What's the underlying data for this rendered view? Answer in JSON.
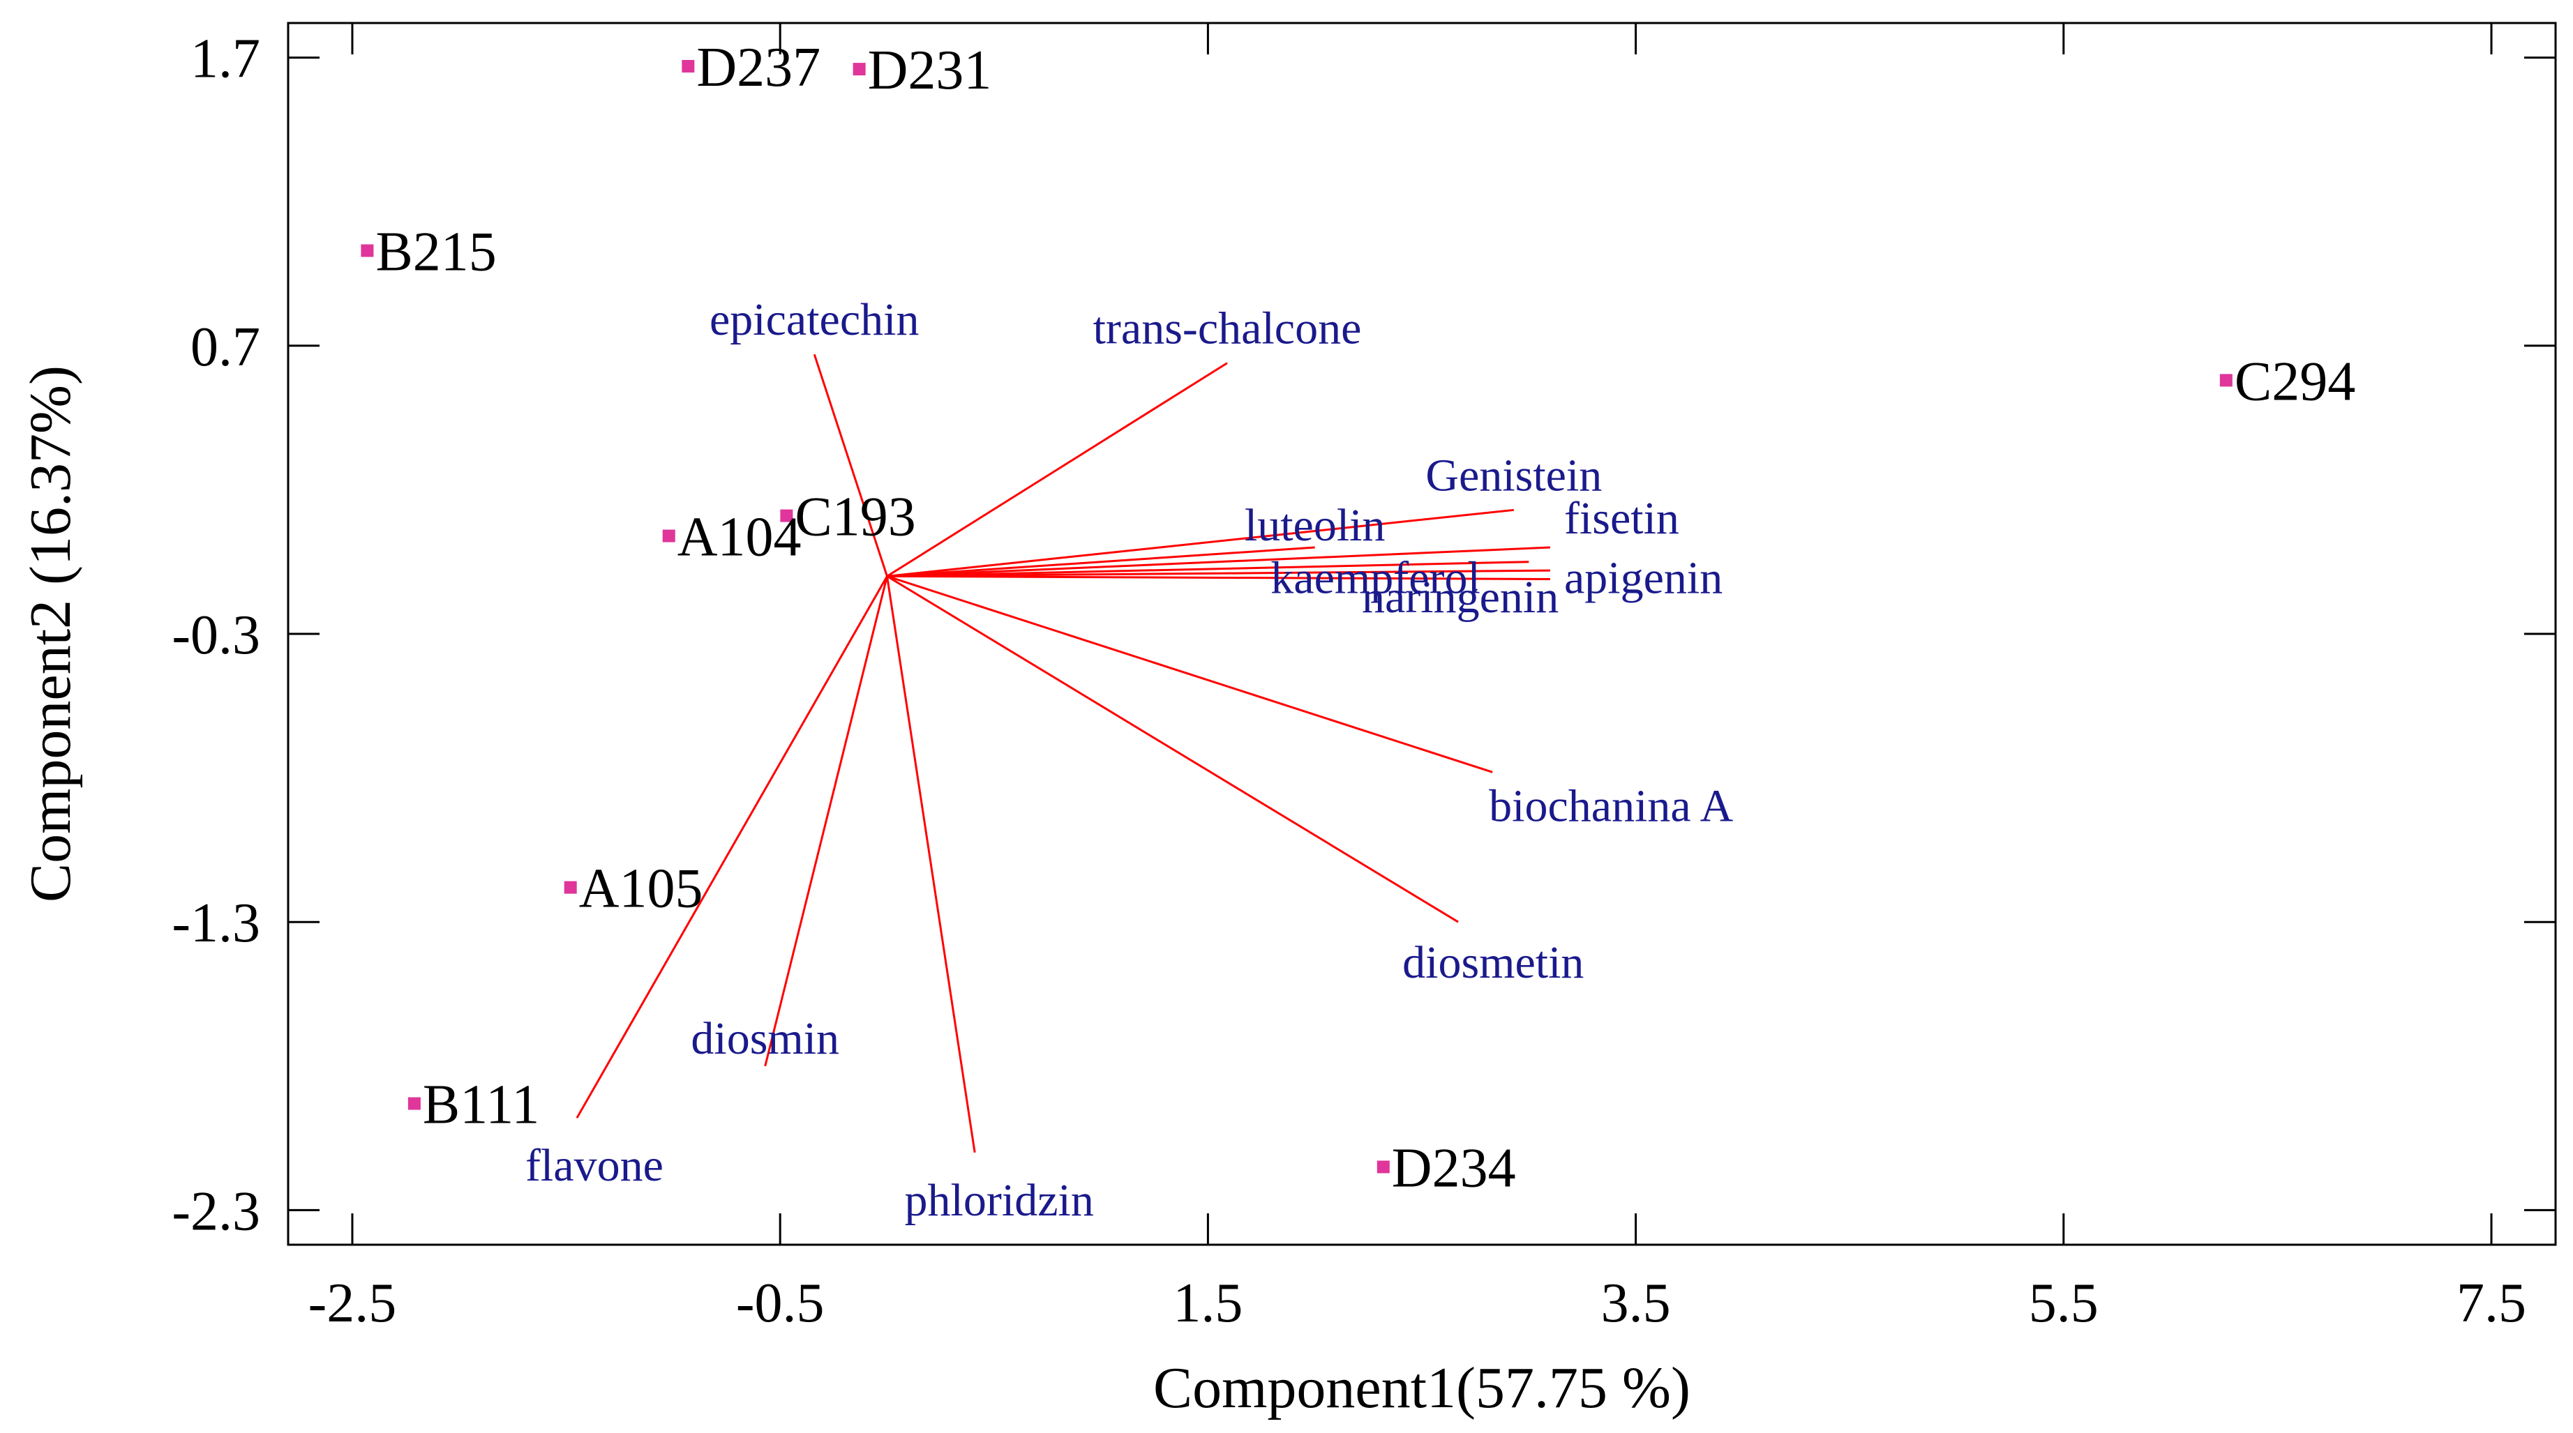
{
  "chart_data": {
    "type": "scatter",
    "subtype": "biplot",
    "title": "",
    "xlabel": "Component1(57.75 %)",
    "ylabel": "Component2 (16.37%)",
    "xlim": [
      -2.8,
      7.8
    ],
    "ylim": [
      -2.42,
      1.82
    ],
    "xticks": [
      -2.5,
      -0.5,
      1.5,
      3.5,
      5.5,
      7.5
    ],
    "xtick_labels": [
      "-2.5",
      "-0.5",
      "1.5",
      "3.5",
      "5.5",
      "7.5"
    ],
    "yticks": [
      1.7,
      0.7,
      -0.3,
      -1.3,
      -2.3
    ],
    "ytick_labels": [
      "1.7",
      "0.7",
      "-0.3",
      "-1.3",
      "-2.3"
    ],
    "grid": false,
    "legend": "none",
    "colors": {
      "points": "#e0359a",
      "vectors": "#ff0000",
      "variable_labels": "#1a1a8c",
      "text": "#000000"
    },
    "vector_origin": [
      0.0,
      -0.1
    ],
    "observations": [
      {
        "label": "D237",
        "x": -0.93,
        "y": 1.67
      },
      {
        "label": "D231",
        "x": -0.13,
        "y": 1.66
      },
      {
        "label": "B215",
        "x": -2.43,
        "y": 1.03
      },
      {
        "label": "C294",
        "x": 6.26,
        "y": 0.58
      },
      {
        "label": "C193",
        "x": -0.47,
        "y": 0.11
      },
      {
        "label": "A104",
        "x": -1.02,
        "y": 0.04
      },
      {
        "label": "A105",
        "x": -1.48,
        "y": -1.18
      },
      {
        "label": "B111",
        "x": -2.21,
        "y": -1.93
      },
      {
        "label": "D234",
        "x": 2.32,
        "y": -2.15
      }
    ],
    "variables": [
      {
        "label": "epicatechin",
        "x": -0.34,
        "y": 0.67
      },
      {
        "label": "trans-chalcone",
        "x": 1.59,
        "y": 0.64
      },
      {
        "label": "Genistein",
        "x": 2.93,
        "y": 0.13
      },
      {
        "label": "luteolin",
        "x": 2.0,
        "y": 0.0
      },
      {
        "label": "fisetin",
        "x": 3.1,
        "y": 0.0
      },
      {
        "label": "kaempferol",
        "x": 3.0,
        "y": -0.05
      },
      {
        "label": "naringenin",
        "x": 3.1,
        "y": -0.08
      },
      {
        "label": "apigenin",
        "x": 3.1,
        "y": -0.11
      },
      {
        "label": "biochanina A",
        "x": 2.83,
        "y": -0.78
      },
      {
        "label": "diosmetin",
        "x": 2.67,
        "y": -1.3
      },
      {
        "label": "diosmin",
        "x": -0.57,
        "y": -1.8
      },
      {
        "label": "phloridzin",
        "x": 0.41,
        "y": -2.1
      },
      {
        "label": "flavone",
        "x": -1.45,
        "y": -1.98
      }
    ]
  }
}
